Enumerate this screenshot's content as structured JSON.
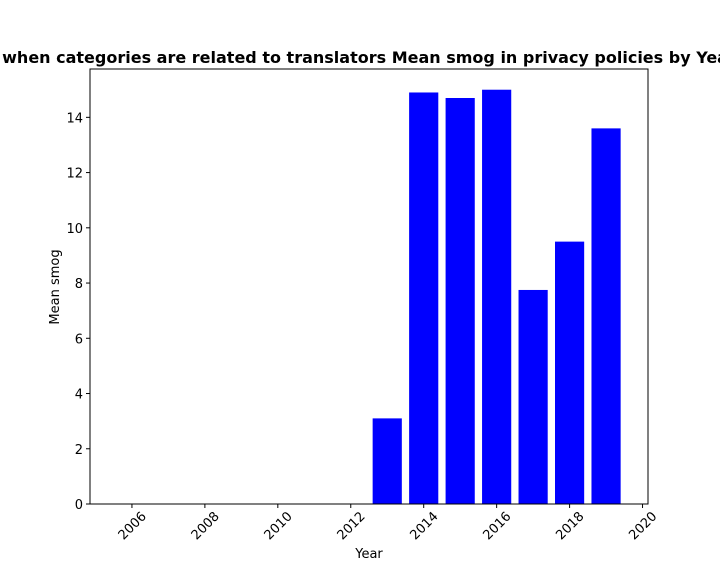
{
  "chart_data": {
    "type": "bar",
    "title": "when categories are related to translators Mean smog in privacy policies by Year",
    "xlabel": "Year",
    "ylabel": "Mean smog",
    "x": [
      2013,
      2014,
      2015,
      2016,
      2017,
      2018,
      2019
    ],
    "values": [
      3.1,
      14.9,
      14.7,
      15.0,
      7.75,
      9.5,
      13.6
    ],
    "xlim": [
      2004.85,
      2020.15
    ],
    "ylim": [
      0,
      15.75
    ],
    "xticks": [
      2006,
      2008,
      2010,
      2012,
      2014,
      2016,
      2018,
      2020
    ],
    "xtick_labels": [
      "2006",
      "2008",
      "2010",
      "2012",
      "2014",
      "2016",
      "2018",
      "2020"
    ],
    "yticks": [
      0,
      2,
      4,
      6,
      8,
      10,
      12,
      14
    ],
    "ytick_labels": [
      "0",
      "2",
      "4",
      "6",
      "8",
      "10",
      "12",
      "14"
    ],
    "bar_color": "#0000ff",
    "grid": false,
    "legend": "none"
  }
}
